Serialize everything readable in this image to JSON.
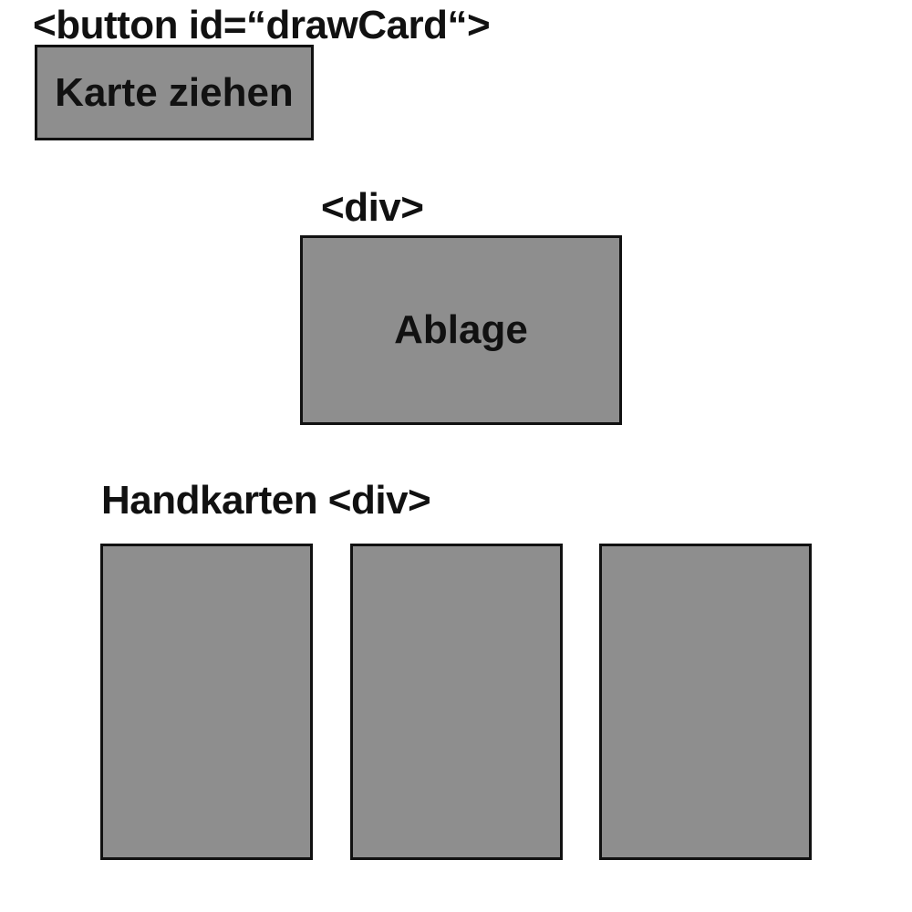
{
  "draw_button": {
    "tag_label": "<button id=“drawCard“>",
    "label": "Karte ziehen"
  },
  "discard": {
    "tag_label": "<div>",
    "label": "Ablage"
  },
  "hand": {
    "label": "Handkarten <div>",
    "cards": [
      {
        "label": ""
      },
      {
        "label": ""
      },
      {
        "label": ""
      }
    ]
  },
  "colors": {
    "box_fill": "#8e8e8e",
    "border": "#111111",
    "text": "#111111",
    "background": "#ffffff"
  }
}
